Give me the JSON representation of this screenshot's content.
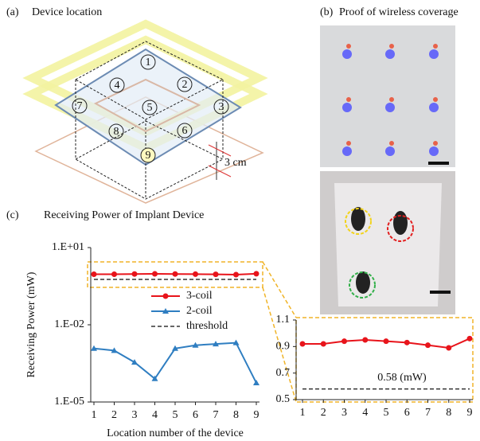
{
  "panel_a": {
    "label": "(a)",
    "title": "Device location",
    "locations": [
      "1",
      "2",
      "3",
      "4",
      "5",
      "6",
      "7",
      "8",
      "9"
    ],
    "distance": "3 cm"
  },
  "panel_b": {
    "label": "(b)",
    "title": "Proof of wireless coverage"
  },
  "panel_c": {
    "label": "(c)"
  },
  "chart_data": [
    {
      "type": "line",
      "title": "Receiving Power of Implant Device",
      "x_label": "Location number of the device",
      "y_label": "Receiving Power (mW)",
      "log_y": true,
      "x": [
        1,
        2,
        3,
        4,
        5,
        6,
        7,
        8,
        9
      ],
      "xlim": [
        1,
        9
      ],
      "xticks": [
        1,
        2,
        3,
        4,
        5,
        6,
        7,
        8,
        9
      ],
      "ylim": [
        1e-05,
        10
      ],
      "yticks": [
        {
          "value": 1e-05,
          "label": "1.E-05"
        },
        {
          "value": 0.01,
          "label": "1.E-02"
        },
        {
          "value": 10,
          "label": "1.E+01"
        }
      ],
      "legend": "center",
      "series": [
        {
          "name": "3-coil",
          "color": "#e8141b",
          "marker": "circle",
          "values": [
            0.92,
            0.92,
            0.94,
            0.95,
            0.94,
            0.93,
            0.91,
            0.89,
            0.96
          ]
        },
        {
          "name": "2-coil",
          "color": "#2f7ec1",
          "marker": "triangle",
          "values": [
            0.0012,
            0.001,
            0.00035,
            8e-05,
            0.0012,
            0.0016,
            0.0018,
            0.002,
            5.5e-05
          ]
        },
        {
          "name": "threshold",
          "color": "#333333",
          "dash": true,
          "values": [
            0.58,
            0.58,
            0.58,
            0.58,
            0.58,
            0.58,
            0.58,
            0.58,
            0.58
          ]
        }
      ]
    },
    {
      "type": "line",
      "x": [
        1,
        2,
        3,
        4,
        5,
        6,
        7,
        8,
        9
      ],
      "xlim": [
        1,
        9
      ],
      "xticks": [
        1,
        2,
        3,
        4,
        5,
        6,
        7,
        8,
        9
      ],
      "ylim": [
        0.5,
        1.1
      ],
      "yticks": [
        0.5,
        0.7,
        0.9,
        1.1
      ],
      "series": [
        {
          "color": "#e8141b",
          "marker": "circle",
          "values": [
            0.92,
            0.92,
            0.94,
            0.95,
            0.94,
            0.93,
            0.91,
            0.89,
            0.96
          ]
        }
      ],
      "threshold": {
        "value": 0.58,
        "label": "0.58 (mW)",
        "color": "#333333"
      }
    }
  ]
}
